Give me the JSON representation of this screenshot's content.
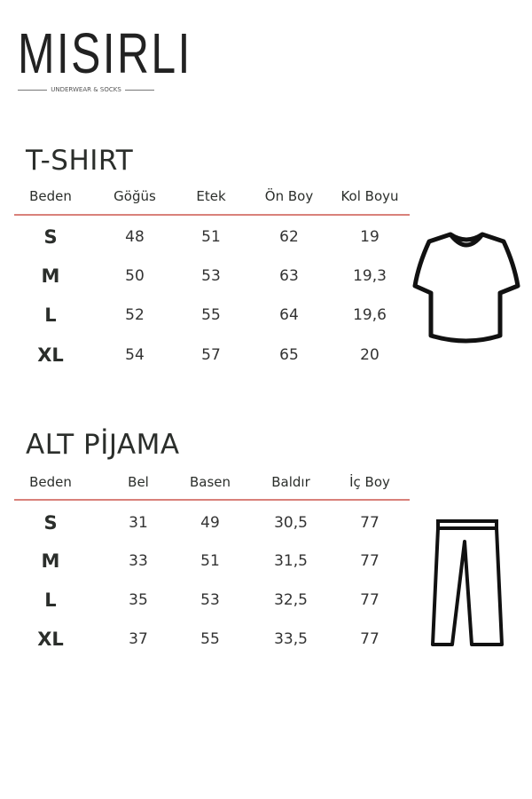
{
  "brand": {
    "name": "MISIRLI",
    "tagline": "UNDERWEAR & SOCKS"
  },
  "tables": [
    {
      "title": "T-SHIRT",
      "icon": "tshirt-icon",
      "headers": [
        "Beden",
        "Göğüs",
        "Etek",
        "Ön Boy",
        "Kol Boyu"
      ],
      "rows": [
        [
          "S",
          "48",
          "51",
          "62",
          "19"
        ],
        [
          "M",
          "50",
          "53",
          "63",
          "19,3"
        ],
        [
          "L",
          "52",
          "55",
          "64",
          "19,6"
        ],
        [
          "XL",
          "54",
          "57",
          "65",
          "20"
        ]
      ]
    },
    {
      "title": "ALT PİJAMA",
      "icon": "pants-icon",
      "headers": [
        "Beden",
        "Bel",
        "Basen",
        "Baldır",
        "İç Boy"
      ],
      "rows": [
        [
          "S",
          "31",
          "49",
          "30,5",
          "77"
        ],
        [
          "M",
          "33",
          "51",
          "31,5",
          "77"
        ],
        [
          "L",
          "35",
          "53",
          "32,5",
          "77"
        ],
        [
          "XL",
          "37",
          "55",
          "33,5",
          "77"
        ]
      ]
    }
  ],
  "colors": {
    "divider": "#d9817a",
    "text": "#2b2e2b"
  }
}
